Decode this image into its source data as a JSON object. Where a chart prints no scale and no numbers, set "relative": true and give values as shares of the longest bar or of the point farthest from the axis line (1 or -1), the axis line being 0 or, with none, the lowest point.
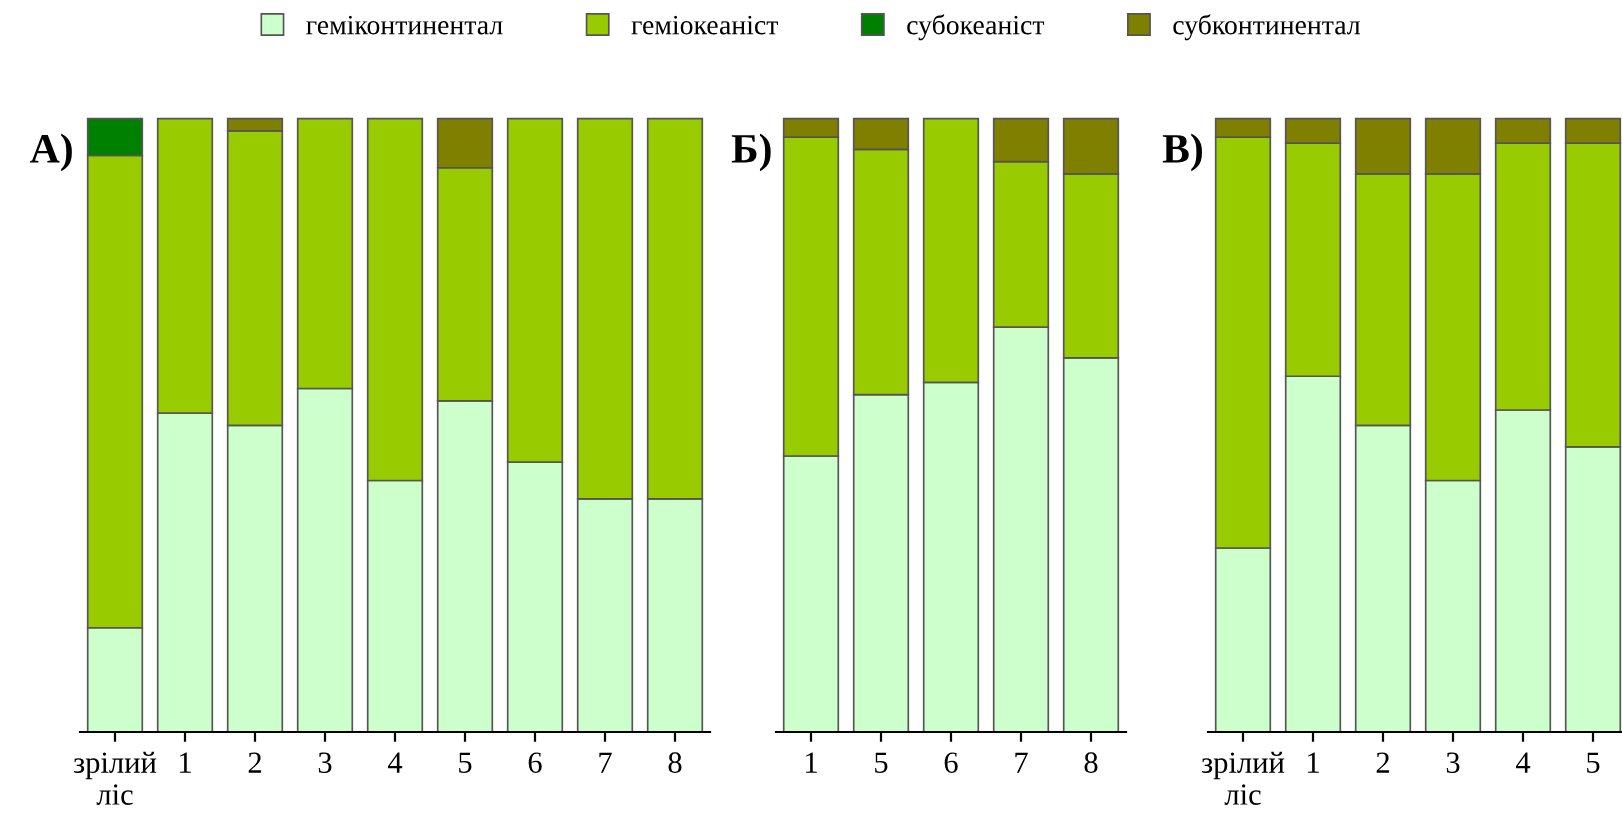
{
  "chart_data": [
    {
      "type": "bar",
      "title": "А)",
      "stacked": true,
      "relative": true,
      "legend": "top",
      "categories": [
        "зрілий\nліс",
        "1",
        "2",
        "3",
        "4",
        "5",
        "6",
        "7",
        "8"
      ],
      "series": [
        {
          "name": "геміконтинентал",
          "color": "#ccffcc",
          "values": [
            0.17,
            0.52,
            0.5,
            0.56,
            0.41,
            0.54,
            0.44,
            0.38,
            0.38
          ]
        },
        {
          "name": "геміокеаніст",
          "color": "#99cc00",
          "values": [
            0.77,
            0.48,
            0.48,
            0.44,
            0.59,
            0.38,
            0.56,
            0.62,
            0.62
          ]
        },
        {
          "name": "субокеаніст",
          "color": "#008000",
          "values": [
            0.06,
            null,
            null,
            null,
            null,
            null,
            null,
            null,
            null
          ]
        },
        {
          "name": "субконтинентал",
          "color": "#808000",
          "values": [
            null,
            null,
            0.02,
            null,
            null,
            0.08,
            null,
            null,
            null
          ]
        }
      ]
    },
    {
      "type": "bar",
      "title": "Б)",
      "stacked": true,
      "relative": true,
      "categories": [
        "1",
        "5",
        "6",
        "7",
        "8"
      ],
      "series": [
        {
          "color": "#ccffcc",
          "values": [
            0.45,
            0.55,
            0.57,
            0.66,
            0.61
          ]
        },
        {
          "color": "#99cc00",
          "values": [
            0.52,
            0.4,
            0.43,
            0.27,
            0.3
          ]
        },
        {
          "color": "#808000",
          "values": [
            0.03,
            0.05,
            null,
            0.07,
            0.09
          ]
        }
      ]
    },
    {
      "type": "bar",
      "title": "В)",
      "stacked": true,
      "relative": true,
      "categories": [
        "зрілий\nліс",
        "1",
        "2",
        "3",
        "4",
        "5"
      ],
      "series": [
        {
          "color": "#ccffcc",
          "values": [
            0.3,
            0.58,
            0.5,
            0.41,
            0.525,
            0.465
          ]
        },
        {
          "color": "#99cc00",
          "values": [
            0.67,
            0.38,
            0.41,
            0.5,
            0.435,
            0.495
          ]
        },
        {
          "color": "#808000",
          "values": [
            0.03,
            0.04,
            0.09,
            0.09,
            0.04,
            0.04
          ]
        }
      ]
    }
  ]
}
